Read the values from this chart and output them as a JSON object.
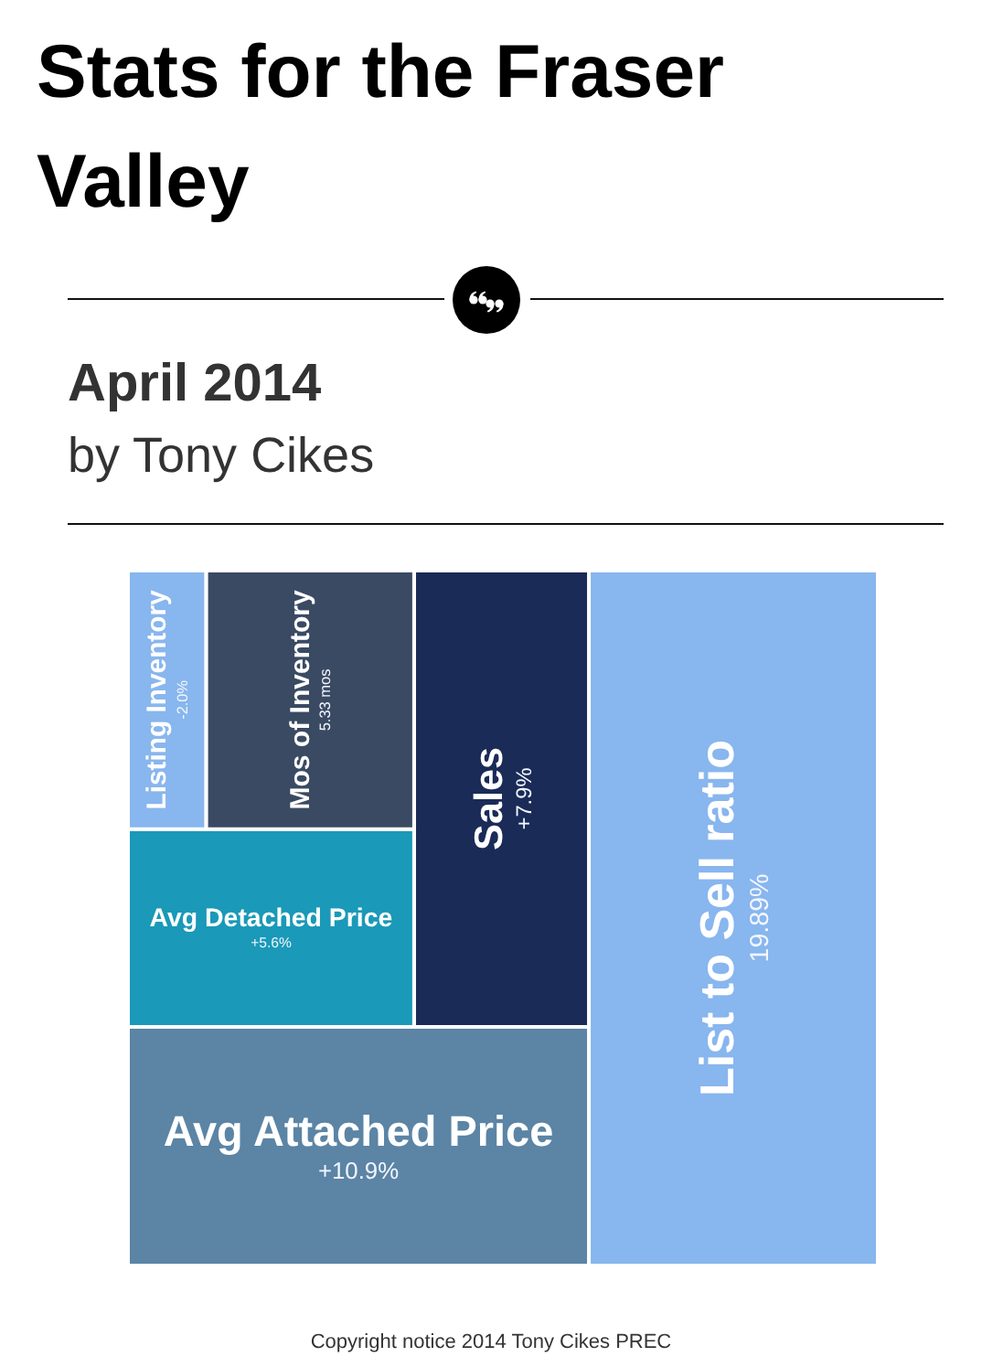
{
  "chart_data": {
    "type": "other",
    "title": "Stats for the Fraser Valley",
    "subtitle": "April 2014",
    "annotations": [
      "by Tony Cikes",
      "Copyright notice 2014 Tony Cikes PREC"
    ],
    "categories": [
      "List to Sell ratio",
      "Avg Attached Price",
      "Sales",
      "Avg Detached Price",
      "Mos of Inventory",
      "Listing Inventory"
    ],
    "values": [
      19.89,
      10.9,
      7.9,
      5.6,
      5.33,
      -2.0
    ],
    "value_labels": [
      "19.89%",
      "+10.9%",
      "+7.9%",
      "+5.6%",
      "5.33 mos",
      "-2.0%"
    ],
    "colors": [
      "#88b6ee",
      "#5b84a5",
      "#1a2b58",
      "#1a99b8",
      "#3a4a63",
      "#88b6ee"
    ]
  }
}
